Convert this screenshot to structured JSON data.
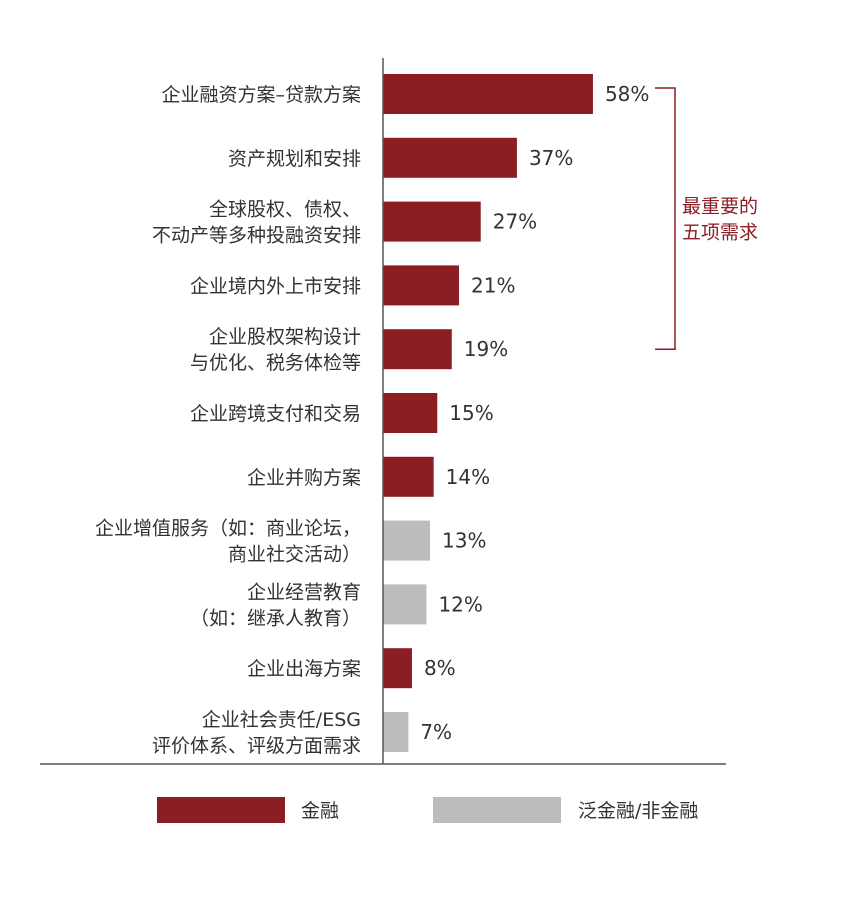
{
  "chart_data": {
    "type": "bar",
    "orientation": "horizontal",
    "categories": [
      [
        "企业融资方案–贷款方案"
      ],
      [
        "资产规划和安排"
      ],
      [
        "全球股权、债权、",
        "不动产等多种投融资安排"
      ],
      [
        "企业境内外上市安排"
      ],
      [
        "企业股权架构设计",
        "与优化、税务体检等"
      ],
      [
        "企业跨境支付和交易"
      ],
      [
        "企业并购方案"
      ],
      [
        "企业增值服务（如：商业论坛，",
        "商业社交活动）"
      ],
      [
        "企业经营教育",
        "（如：继承人教育）"
      ],
      [
        "企业出海方案"
      ],
      [
        "企业社会责任/ESG",
        "评价体系、评级方面需求"
      ]
    ],
    "values": [
      58,
      37,
      27,
      21,
      19,
      15,
      14,
      13,
      12,
      8,
      7
    ],
    "value_labels": [
      "58%",
      "37%",
      "27%",
      "21%",
      "19%",
      "15%",
      "14%",
      "13%",
      "12%",
      "8%",
      "7%"
    ],
    "groups": [
      "金融",
      "金融",
      "金融",
      "金融",
      "金融",
      "金融",
      "金融",
      "泛金融/非金融",
      "泛金融/非金融",
      "金融",
      "泛金融/非金融"
    ],
    "unit": "%",
    "xlim": [
      0,
      100
    ],
    "grid": false,
    "legend": {
      "placement": "bottom",
      "items": [
        {
          "name": "金融",
          "color": "#8B1E24"
        },
        {
          "name": "泛金融/非金融",
          "color": "#BCBCBC"
        }
      ]
    },
    "annotation": {
      "lines": [
        "最重要的",
        "五项需求"
      ],
      "bracket_from_index": 0,
      "bracket_to_index": 4,
      "color": "#8B1E24"
    }
  },
  "colors": {
    "financial": "#8B1E24",
    "non_financial": "#BCBCBC",
    "text": "#333333",
    "axis": "#555555",
    "annotation": "#8B1E24"
  }
}
